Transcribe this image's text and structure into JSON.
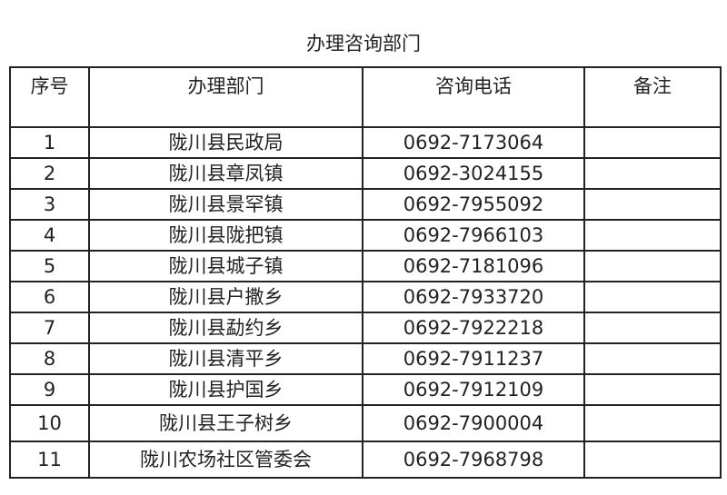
{
  "title": "办理咨询部门",
  "headers": [
    "序号",
    "办理部门",
    "咨询电话",
    "备注"
  ],
  "rows": [
    {
      "no": "1",
      "dept": "陇川县民政局",
      "phone": "0692-7173064",
      "note": ""
    },
    {
      "no": "2",
      "dept": "陇川县章凤镇",
      "phone": "0692-3024155",
      "note": ""
    },
    {
      "no": "3",
      "dept": "陇川县景罕镇",
      "phone": "0692-7955092",
      "note": ""
    },
    {
      "no": "4",
      "dept": "陇川县陇把镇",
      "phone": "0692-7966103",
      "note": ""
    },
    {
      "no": "5",
      "dept": "陇川县城子镇",
      "phone": "0692-7181096",
      "note": ""
    },
    {
      "no": "6",
      "dept": "陇川县户撒乡",
      "phone": "0692-7933720",
      "note": ""
    },
    {
      "no": "7",
      "dept": "陇川县勐约乡",
      "phone": "0692-7922218",
      "note": ""
    },
    {
      "no": "8",
      "dept": "陇川县清平乡",
      "phone": "0692-7911237",
      "note": ""
    },
    {
      "no": "9",
      "dept": "陇川县护国乡",
      "phone": "0692-7912109",
      "note": ""
    },
    {
      "no": "10",
      "dept": "陇川县王子树乡",
      "phone": "0692-7900004",
      "note": ""
    },
    {
      "no": "11",
      "dept": "陇川农场社区管委会",
      "phone": "0692-7968798",
      "note": ""
    }
  ]
}
